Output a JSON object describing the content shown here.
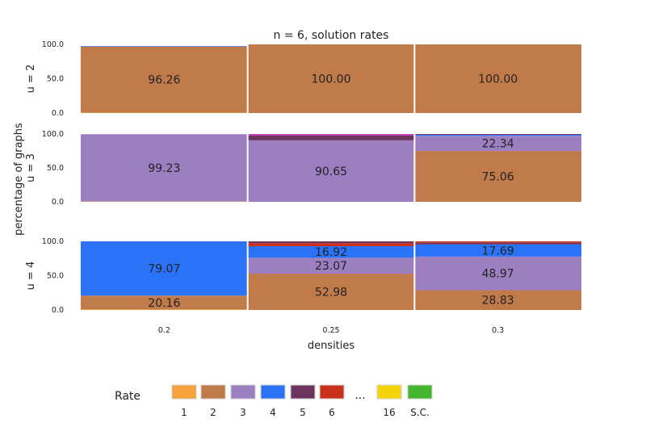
{
  "chart_data": {
    "type": "bar",
    "stacked": true,
    "normalized": true,
    "title": "n = 6, solution rates",
    "xlabel": "densities",
    "ylabel": "percentage of graphs",
    "categories": [
      "0.2",
      "0.25",
      "0.3"
    ],
    "ylim": [
      0,
      100
    ],
    "yticks": [
      "0.0",
      "50.0",
      "100.0"
    ],
    "grid": false,
    "legend_placement": "bottom",
    "legend": {
      "title": "Rate",
      "entries": [
        {
          "label": "1",
          "color": "#f5a33a"
        },
        {
          "label": "2",
          "color": "#c17b4b"
        },
        {
          "label": "3",
          "color": "#9b7fc0"
        },
        {
          "label": "4",
          "color": "#2a72f7"
        },
        {
          "label": "5",
          "color": "#6b3560"
        },
        {
          "label": "6",
          "color": "#c8301a"
        },
        {
          "label": "...",
          "ellipsis": true
        },
        {
          "label": "16",
          "color": "#f3d40a"
        },
        {
          "label": "S.C.",
          "color": "#43b52f"
        }
      ]
    },
    "panels": [
      {
        "label": "u = 2",
        "segments": [
          [
            {
              "rate": "1",
              "value": 0.6
            },
            {
              "rate": "2",
              "value": 96.26,
              "label": "96.26"
            },
            {
              "rate": "4",
              "value": 0.8
            }
          ],
          [
            {
              "rate": "2",
              "value": 100.0,
              "label": "100.00"
            }
          ],
          [
            {
              "rate": "2",
              "value": 100.0,
              "label": "100.00"
            }
          ]
        ]
      },
      {
        "label": "u = 3",
        "segments": [
          [
            {
              "rate": "1",
              "value": 0.5
            },
            {
              "rate": "3",
              "value": 99.23,
              "label": "99.23"
            }
          ],
          [
            {
              "rate": "3",
              "value": 90.65,
              "label": "90.65"
            },
            {
              "rate": "5",
              "value": 7.5
            },
            {
              "rate": "magenta",
              "value": 1.85
            }
          ],
          [
            {
              "rate": "2",
              "value": 75.06,
              "label": "75.06"
            },
            {
              "rate": "3",
              "value": 22.34,
              "label": "22.34"
            },
            {
              "rate": "4",
              "value": 1.5
            },
            {
              "rate": "5",
              "value": 1.1
            }
          ]
        ]
      },
      {
        "label": "u = 4",
        "segments": [
          [
            {
              "rate": "1",
              "value": 0.77
            },
            {
              "rate": "2",
              "value": 20.16,
              "label": "20.16"
            },
            {
              "rate": "4",
              "value": 79.07,
              "label": "79.07"
            }
          ],
          [
            {
              "rate": "2",
              "value": 52.98,
              "label": "52.98"
            },
            {
              "rate": "3",
              "value": 23.07,
              "label": "23.07"
            },
            {
              "rate": "4",
              "value": 16.92,
              "label": "16.92"
            },
            {
              "rate": "6",
              "value": 4.5
            },
            {
              "rate": "5",
              "value": 2.53
            }
          ],
          [
            {
              "rate": "2",
              "value": 28.83,
              "label": "28.83"
            },
            {
              "rate": "3",
              "value": 48.97,
              "label": "48.97"
            },
            {
              "rate": "4",
              "value": 17.69,
              "label": "17.69"
            },
            {
              "rate": "5",
              "value": 2.5
            },
            {
              "rate": "6",
              "value": 2.01
            }
          ]
        ]
      }
    ],
    "extra_colors": {
      "magenta": "#d63fd6"
    }
  }
}
